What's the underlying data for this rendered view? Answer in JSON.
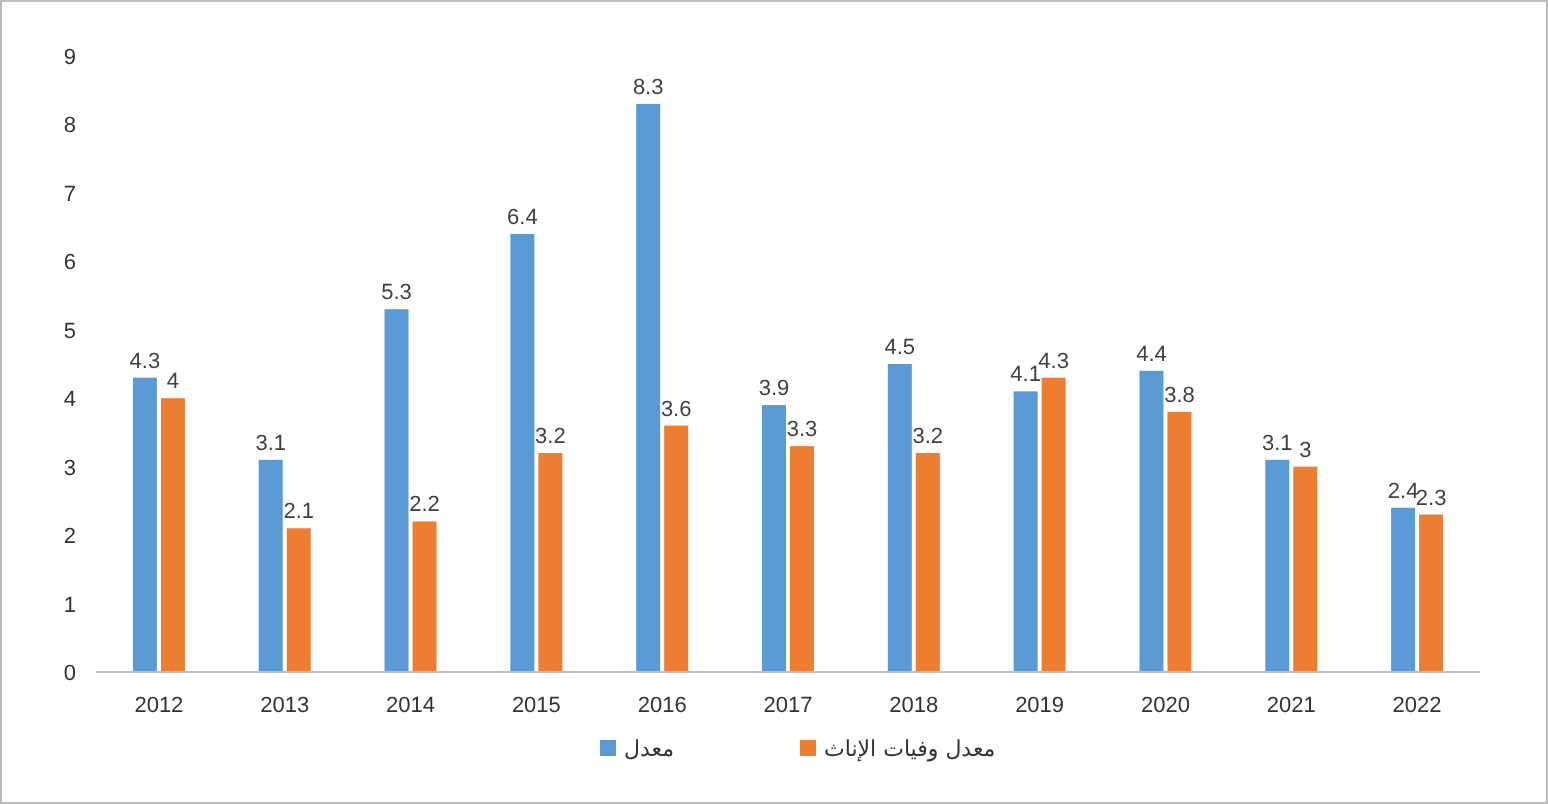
{
  "chart_data": {
    "type": "bar",
    "categories": [
      "2012",
      "2013",
      "2014",
      "2015",
      "2016",
      "2017",
      "2018",
      "2019",
      "2020",
      "2021",
      "2022"
    ],
    "series": [
      {
        "name": "معدل",
        "color": "#5b9bd5",
        "values": [
          4.3,
          3.1,
          5.3,
          6.4,
          8.3,
          3.9,
          4.5,
          4.1,
          4.4,
          3.1,
          2.4
        ]
      },
      {
        "name": "معدل وفيات الإناث",
        "color": "#ed7d31",
        "values": [
          4,
          2.1,
          2.2,
          3.2,
          3.6,
          3.3,
          3.2,
          4.3,
          3.8,
          3,
          2.3
        ]
      }
    ],
    "ylim": [
      0,
      9
    ],
    "yticks": [
      0,
      1,
      2,
      3,
      4,
      5,
      6,
      7,
      8,
      9
    ],
    "data_labels": true,
    "legend": "bottom",
    "grid": false
  }
}
